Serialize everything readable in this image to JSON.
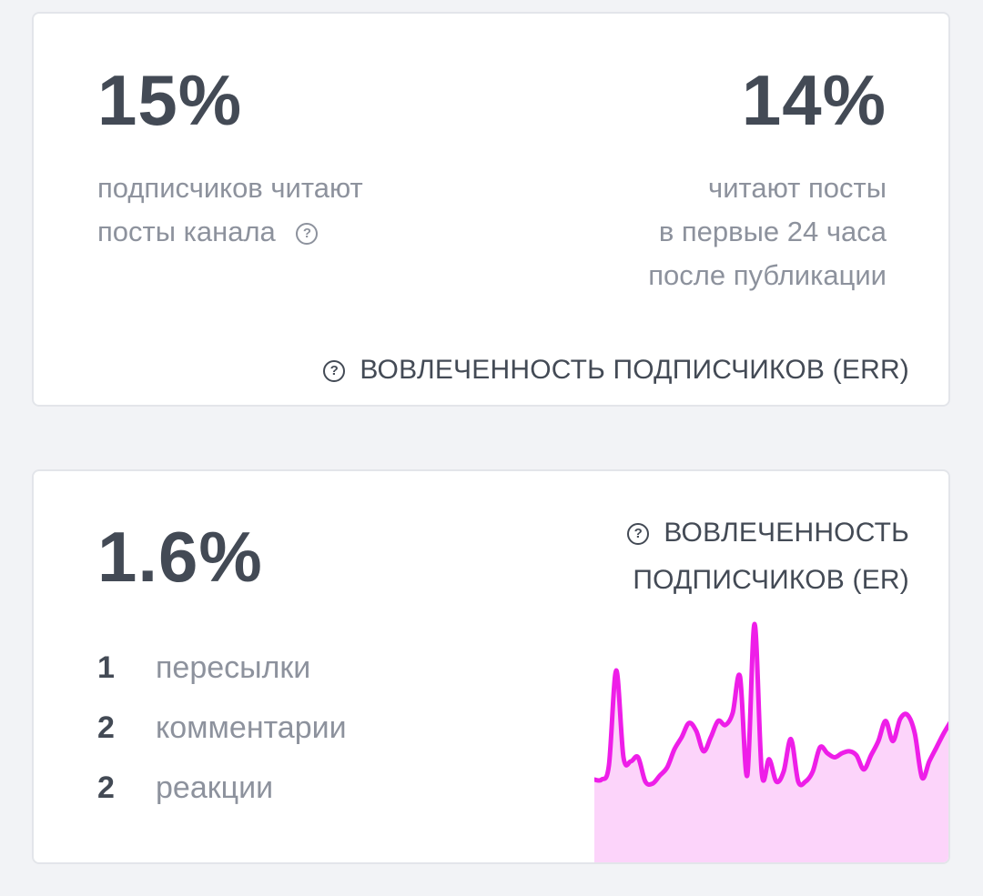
{
  "err_card": {
    "left_value": "15%",
    "left_desc_line1": "подписчиков читают",
    "left_desc_line2": "посты канала",
    "right_value": "14%",
    "right_desc_line1": "читают посты",
    "right_desc_line2": "в первые 24 часа",
    "right_desc_line3": "после публикации",
    "title": "ВОВЛЕЧЕННОСТЬ ПОДПИСЧИКОВ (ERR)",
    "help_icon": "question-circle-icon"
  },
  "er_card": {
    "value": "1.6%",
    "title_line1": "ВОВЛЕЧЕННОСТЬ",
    "title_line2": "ПОДПИСЧИКОВ (ER)",
    "help_icon": "question-circle-icon",
    "stats": [
      {
        "count": "1",
        "label": "пересылки"
      },
      {
        "count": "2",
        "label": "комментарии"
      },
      {
        "count": "2",
        "label": "реакции"
      }
    ]
  },
  "colors": {
    "text_dark": "#434a55",
    "text_muted": "#8d929d",
    "sparkline_line": "#ee1ee8",
    "sparkline_fill": "#fcd4fa"
  },
  "chart_data": {
    "type": "area",
    "title": "",
    "xlabel": "",
    "ylabel": "",
    "grid": false,
    "series": [
      {
        "values": [
          0.23,
          0.23,
          0.3,
          0.77,
          0.34,
          0.32,
          0.34,
          0.22,
          0.21,
          0.25,
          0.29,
          0.38,
          0.44,
          0.51,
          0.47,
          0.37,
          0.44,
          0.52,
          0.5,
          0.56,
          0.74,
          0.25,
          1.0,
          0.26,
          0.33,
          0.22,
          0.27,
          0.43,
          0.22,
          0.22,
          0.27,
          0.39,
          0.36,
          0.34,
          0.36,
          0.37,
          0.35,
          0.28,
          0.35,
          0.42,
          0.52,
          0.42,
          0.53,
          0.55,
          0.46,
          0.24,
          0.32,
          0.39,
          0.46,
          0.52
        ]
      }
    ]
  }
}
